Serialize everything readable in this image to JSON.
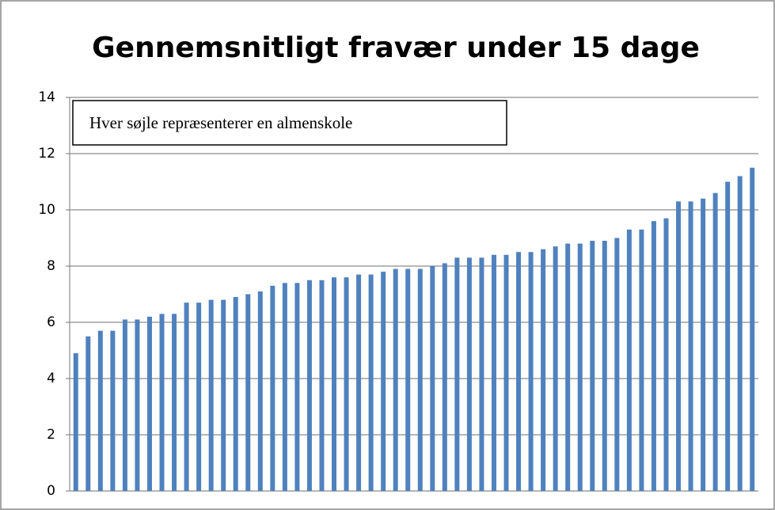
{
  "chart_data": {
    "type": "bar",
    "title": "Gennemsnitligt fravær under 15 dage",
    "annotation": "Hver søjle repræsenterer en almenskole",
    "categories": [
      null,
      null,
      null,
      null,
      null,
      null,
      null,
      null,
      null,
      null,
      null,
      null,
      null,
      null,
      null,
      null,
      null,
      null,
      null,
      null,
      null,
      null,
      null,
      null,
      null,
      null,
      null,
      null,
      null,
      null,
      null,
      null,
      null,
      null,
      null,
      null,
      null,
      null,
      null,
      null,
      null,
      null,
      null,
      null,
      null,
      null,
      null,
      null,
      null,
      null,
      null,
      null,
      null,
      null,
      null,
      null
    ],
    "values": [
      4.9,
      5.5,
      5.7,
      5.7,
      6.1,
      6.1,
      6.2,
      6.3,
      6.3,
      6.7,
      6.7,
      6.8,
      6.8,
      6.9,
      7.0,
      7.1,
      7.3,
      7.4,
      7.4,
      7.5,
      7.5,
      7.6,
      7.6,
      7.7,
      7.7,
      7.8,
      7.9,
      7.9,
      7.9,
      8.0,
      8.1,
      8.3,
      8.3,
      8.3,
      8.4,
      8.4,
      8.5,
      8.5,
      8.6,
      8.7,
      8.8,
      8.8,
      8.9,
      8.9,
      9.0,
      9.3,
      9.3,
      9.6,
      9.7,
      10.3,
      10.3,
      10.4,
      10.6,
      11.0,
      11.2,
      11.5
    ],
    "color": "#4f81bd",
    "ylim": [
      0,
      14
    ],
    "yticks": [
      0,
      2,
      4,
      6,
      8,
      10,
      12,
      14
    ],
    "grid": true
  }
}
